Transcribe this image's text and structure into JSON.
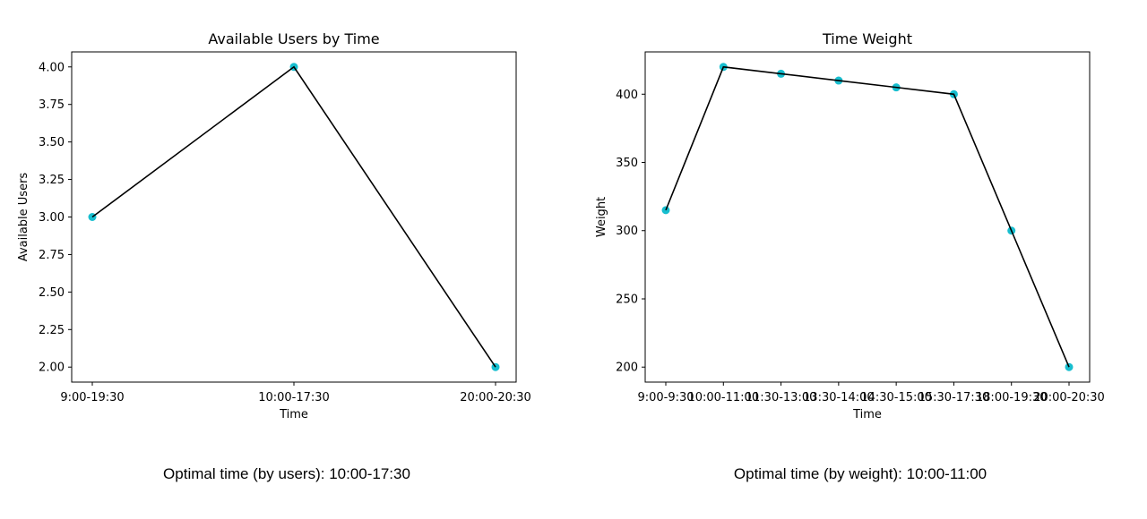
{
  "chart_data": [
    {
      "type": "line",
      "title": "Available Users by Time",
      "xlabel": "Time",
      "ylabel": "Available Users",
      "categories": [
        "9:00-19:30",
        "10:00-17:30",
        "20:00-20:30"
      ],
      "values": [
        3,
        4,
        2
      ],
      "ylim": [
        1.9,
        4.1
      ],
      "yticks": [
        2.0,
        2.25,
        2.5,
        2.75,
        3.0,
        3.25,
        3.5,
        3.75,
        4.0
      ],
      "ytick_labels": [
        "2.00",
        "2.25",
        "2.50",
        "2.75",
        "3.00",
        "3.25",
        "3.50",
        "3.75",
        "4.00"
      ],
      "grid": false,
      "line_color": "#000000",
      "marker_color": "#17becf"
    },
    {
      "type": "line",
      "title": "Time Weight",
      "xlabel": "Time",
      "ylabel": "Weight",
      "categories": [
        "9:00-9:30",
        "10:00-11:00",
        "11:30-13:00",
        "13:30-14:00",
        "14:30-15:00",
        "15:30-17:30",
        "18:00-19:30",
        "20:00-20:30"
      ],
      "values": [
        315,
        420,
        415,
        410,
        405,
        400,
        300,
        200
      ],
      "ylim": [
        189,
        431
      ],
      "yticks": [
        200,
        250,
        300,
        350,
        400
      ],
      "ytick_labels": [
        "200",
        "250",
        "300",
        "350",
        "400"
      ],
      "grid": false,
      "line_color": "#000000",
      "marker_color": "#17becf"
    }
  ],
  "captions": {
    "users": "Optimal time (by users): 10:00-17:30",
    "weight": "Optimal time (by weight): 10:00-11:00"
  }
}
